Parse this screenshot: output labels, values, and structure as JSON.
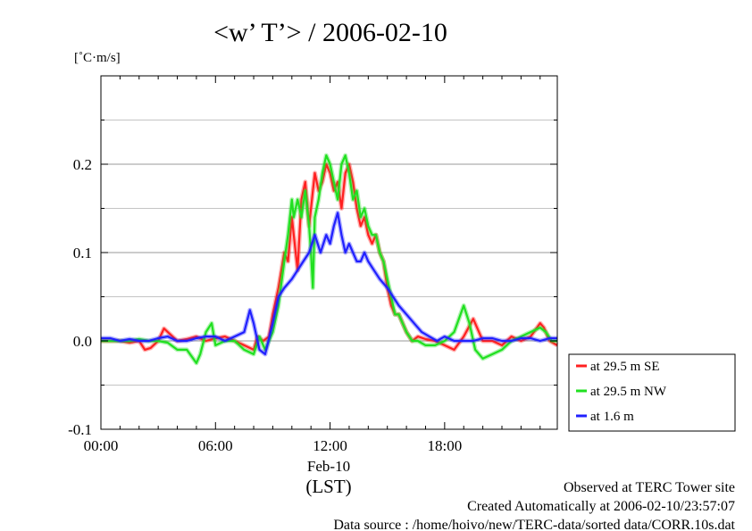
{
  "chart_data": {
    "type": "line",
    "title": "<w’ T’> / 2006-02-10",
    "ylabel": "[˚C·m/s]",
    "xlabel": "(LST)",
    "x_sublabel": "Feb-10",
    "x_unit": "hour of day",
    "xlim": [
      0,
      23.9
    ],
    "ylim": [
      -0.1,
      0.3
    ],
    "x_ticks": [
      {
        "value": 0,
        "label": "00:00"
      },
      {
        "value": 6,
        "label": "06:00"
      },
      {
        "value": 12,
        "label": "12:00"
      },
      {
        "value": 18,
        "label": "18:00"
      }
    ],
    "y_ticks": [
      {
        "value": -0.1,
        "label": "-0.1"
      },
      {
        "value": 0.0,
        "label": "0.0"
      },
      {
        "value": 0.1,
        "label": "0.1"
      },
      {
        "value": 0.2,
        "label": "0.2"
      }
    ],
    "grid": true,
    "legend_position": "outside-right",
    "series": [
      {
        "name": "at 29.5 m SE",
        "color": "#ff2020",
        "x": [
          0,
          0.5,
          1,
          1.5,
          2,
          2.3,
          2.6,
          3,
          3.3,
          3.6,
          4,
          4.5,
          5,
          5.5,
          6,
          6.5,
          7,
          7.5,
          8,
          8.2,
          8.5,
          8.8,
          9,
          9.3,
          9.6,
          9.8,
          10,
          10.1,
          10.3,
          10.5,
          10.7,
          10.9,
          11,
          11.2,
          11.4,
          11.6,
          11.8,
          12,
          12.2,
          12.4,
          12.6,
          12.8,
          13,
          13.2,
          13.4,
          13.6,
          13.8,
          14,
          14.2,
          14.4,
          14.6,
          14.8,
          15,
          15.2,
          15.4,
          15.6,
          15.8,
          16,
          16.3,
          16.6,
          17,
          17.5,
          18,
          18.5,
          19,
          19.5,
          20,
          20.5,
          21,
          21.5,
          22,
          22.5,
          23,
          23.2,
          23.5,
          23.9
        ],
        "y": [
          0.0,
          0.0,
          0.0,
          -0.002,
          0.0,
          -0.01,
          -0.008,
          0.0,
          0.014,
          0.008,
          0.0,
          0.002,
          0.005,
          0.0,
          0.003,
          0.005,
          0.0,
          -0.005,
          -0.01,
          0.005,
          0.0,
          0.005,
          0.03,
          0.06,
          0.1,
          0.09,
          0.14,
          0.12,
          0.08,
          0.16,
          0.18,
          0.13,
          0.15,
          0.19,
          0.17,
          0.18,
          0.2,
          0.19,
          0.17,
          0.18,
          0.15,
          0.19,
          0.2,
          0.18,
          0.15,
          0.13,
          0.14,
          0.12,
          0.11,
          0.12,
          0.1,
          0.09,
          0.06,
          0.04,
          0.03,
          0.03,
          0.02,
          0.01,
          0.0,
          0.005,
          0.002,
          0.0,
          -0.005,
          -0.01,
          0.005,
          0.025,
          0.0,
          0.0,
          -0.005,
          0.005,
          0.0,
          0.005,
          0.02,
          0.015,
          0.0,
          -0.005
        ]
      },
      {
        "name": "at 29.5 m NW",
        "color": "#20e020",
        "x": [
          0,
          0.5,
          1,
          1.5,
          2,
          2.5,
          3,
          3.5,
          4,
          4.5,
          5,
          5.2,
          5.5,
          5.8,
          6,
          6.5,
          7,
          7.5,
          8,
          8.3,
          8.6,
          9,
          9.3,
          9.6,
          9.8,
          10,
          10.1,
          10.3,
          10.5,
          10.7,
          10.9,
          11,
          11.1,
          11.2,
          11.4,
          11.6,
          11.8,
          12,
          12.2,
          12.4,
          12.6,
          12.8,
          13,
          13.2,
          13.4,
          13.6,
          13.8,
          14,
          14.2,
          14.4,
          14.6,
          14.8,
          15,
          15.2,
          15.4,
          15.6,
          15.8,
          16,
          16.3,
          16.6,
          17,
          17.5,
          18,
          18.5,
          19,
          19.3,
          19.6,
          20,
          20.5,
          21,
          21.5,
          22,
          22.5,
          23,
          23.3,
          23.6,
          23.9
        ],
        "y": [
          0.0,
          0.0,
          0.0,
          0.0,
          0.002,
          0.0,
          0.0,
          -0.002,
          -0.01,
          -0.01,
          -0.025,
          -0.015,
          0.01,
          0.02,
          -0.005,
          0.0,
          0.0,
          -0.01,
          -0.015,
          0.005,
          -0.01,
          0.01,
          0.04,
          0.09,
          0.12,
          0.16,
          0.14,
          0.16,
          0.14,
          0.17,
          0.13,
          0.1,
          0.06,
          0.14,
          0.16,
          0.19,
          0.21,
          0.2,
          0.18,
          0.16,
          0.2,
          0.21,
          0.19,
          0.16,
          0.17,
          0.14,
          0.15,
          0.13,
          0.12,
          0.12,
          0.1,
          0.09,
          0.07,
          0.05,
          0.03,
          0.03,
          0.02,
          0.01,
          0.0,
          0.0,
          -0.005,
          -0.005,
          0.0,
          0.01,
          0.04,
          0.02,
          -0.01,
          -0.02,
          -0.015,
          -0.01,
          0.0,
          0.005,
          0.01,
          0.015,
          0.01,
          0.0,
          0.0
        ]
      },
      {
        "name": "at 1.6 m",
        "color": "#2020ff",
        "x": [
          0,
          0.5,
          1,
          1.5,
          2,
          2.5,
          3,
          3.5,
          4,
          4.5,
          5,
          5.5,
          6,
          6.5,
          7,
          7.5,
          7.8,
          8,
          8.3,
          8.6,
          9,
          9.3,
          9.6,
          10,
          10.3,
          10.6,
          10.9,
          11.2,
          11.5,
          11.8,
          12,
          12.2,
          12.4,
          12.6,
          12.8,
          13,
          13.2,
          13.4,
          13.6,
          13.8,
          14,
          14.3,
          14.6,
          15,
          15.3,
          15.6,
          16,
          16.4,
          16.8,
          17.2,
          17.6,
          18,
          18.5,
          19,
          19.5,
          20,
          20.5,
          21,
          21.5,
          22,
          22.5,
          23,
          23.5,
          23.9
        ],
        "y": [
          0.003,
          0.003,
          0.0,
          0.002,
          0.0,
          0.0,
          0.003,
          0.005,
          0.0,
          0.0,
          0.003,
          0.005,
          0.005,
          0.0,
          0.005,
          0.01,
          0.035,
          0.02,
          -0.01,
          -0.015,
          0.02,
          0.05,
          0.06,
          0.07,
          0.08,
          0.09,
          0.1,
          0.12,
          0.1,
          0.12,
          0.11,
          0.13,
          0.145,
          0.12,
          0.1,
          0.11,
          0.1,
          0.09,
          0.09,
          0.1,
          0.09,
          0.08,
          0.07,
          0.06,
          0.05,
          0.04,
          0.03,
          0.02,
          0.01,
          0.005,
          0.0,
          0.005,
          0.0,
          0.0,
          0.0,
          0.003,
          0.003,
          0.0,
          0.0,
          0.003,
          0.003,
          0.0,
          0.003,
          0.003
        ]
      }
    ]
  },
  "footer": {
    "line1": "Observed at TERC Tower site",
    "line2": "Created Automatically at 2006-02-10/23:57:07",
    "line3": "Data source : /home/hoivo/new/TERC-data/sorted  data/CORR.10s.dat"
  }
}
